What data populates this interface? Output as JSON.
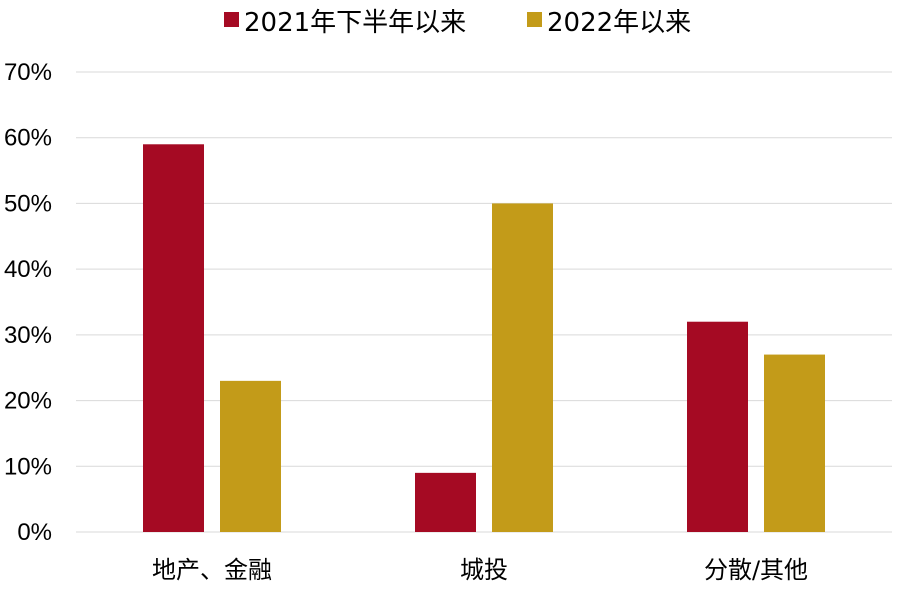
{
  "chart_data": {
    "type": "bar",
    "title": "",
    "xlabel": "",
    "ylabel": "",
    "categories": [
      "地产、金融",
      "城投",
      "分散/其他"
    ],
    "series": [
      {
        "name": "2021年下半年以来",
        "color": "#a50a23",
        "values": [
          59,
          9,
          32
        ]
      },
      {
        "name": "2022年以来",
        "color": "#c39b19",
        "values": [
          23,
          50,
          27
        ]
      }
    ],
    "ylim": [
      0,
      70
    ],
    "yticks": [
      "0%",
      "10%",
      "20%",
      "30%",
      "40%",
      "50%",
      "60%",
      "70%"
    ],
    "y_unit": "%",
    "grid": true,
    "legend_position": "top-center"
  }
}
